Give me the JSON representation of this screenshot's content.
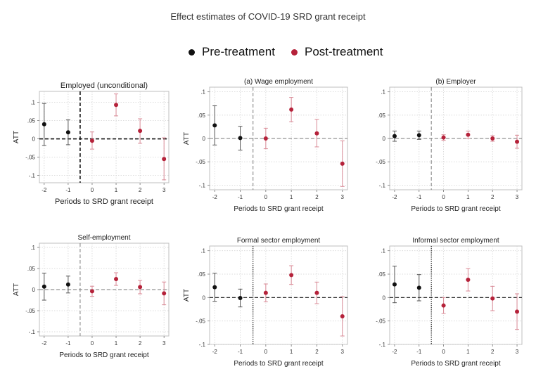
{
  "page": {
    "title": "Effect estimates of COVID-19 SRD grant receipt"
  },
  "legend": {
    "items": [
      {
        "label": "Pre-treatment",
        "color": "#000000"
      },
      {
        "label": "Post-treatment",
        "color": "#b5223a"
      }
    ]
  },
  "colors": {
    "pre": "#111111",
    "post": "#b5223a",
    "pre_ci": "#555555",
    "post_ci": "#d98a96"
  },
  "chart_data": [
    {
      "type": "scatter",
      "title": "Employed (unconditional)",
      "ylabel": "ATT",
      "xlabel": "Periods to SRD grant receipt",
      "x": [
        -2,
        -1,
        0,
        1,
        2,
        3
      ],
      "y": [
        0.04,
        0.018,
        -0.005,
        0.093,
        0.022,
        -0.055
      ],
      "ci_low": [
        -0.018,
        -0.016,
        -0.028,
        0.063,
        -0.012,
        -0.112
      ],
      "ci_high": [
        0.097,
        0.052,
        0.019,
        0.123,
        0.055,
        0.003
      ],
      "phase": [
        "pre",
        "pre",
        "post",
        "post",
        "post",
        "post"
      ],
      "xlim": [
        -2.2,
        3.2
      ],
      "ylim": [
        -0.12,
        0.13
      ],
      "yticks": [
        0.1,
        0.05,
        0,
        -0.05,
        -0.1
      ],
      "ytick_labels": [
        ".1",
        ".05",
        "0",
        "-.05",
        "-.1"
      ],
      "xticks": [
        -2,
        -1,
        0,
        1,
        2,
        3
      ],
      "xtick_labels": [
        "-2",
        "-1",
        "0",
        "1",
        "2",
        "3"
      ],
      "grid": true
    },
    {
      "type": "scatter",
      "title": "(a) Wage employment",
      "ylabel": "ATT",
      "xlabel": "Periods to SRD grant receipt",
      "x": [
        -2,
        -1,
        0,
        1,
        2,
        3
      ],
      "y": [
        0.028,
        0.001,
        0.0,
        0.062,
        0.011,
        -0.054
      ],
      "ci_low": [
        -0.014,
        -0.025,
        -0.022,
        0.036,
        -0.018,
        -0.103
      ],
      "ci_high": [
        0.07,
        0.026,
        0.022,
        0.088,
        0.041,
        -0.005
      ],
      "phase": [
        "pre",
        "pre",
        "post",
        "post",
        "post",
        "post"
      ],
      "xlim": [
        -2.2,
        3.2
      ],
      "ylim": [
        -0.11,
        0.11
      ],
      "yticks": [
        0.1,
        0.05,
        0,
        -0.05,
        -0.1
      ],
      "ytick_labels": [
        ".1",
        ".05",
        "0",
        "-.05",
        "-.1"
      ],
      "xticks": [
        -2,
        -1,
        0,
        1,
        2,
        3
      ],
      "xtick_labels": [
        "-2",
        "-1",
        "0",
        "1",
        "2",
        "3"
      ],
      "grid": true
    },
    {
      "type": "scatter",
      "title": "(b) Employer",
      "ylabel": "",
      "xlabel": "Periods to SRD grant receipt",
      "x": [
        -2,
        -1,
        0,
        1,
        2,
        3
      ],
      "y": [
        0.005,
        0.007,
        0.002,
        0.008,
        0.0,
        -0.007
      ],
      "ci_low": [
        -0.006,
        -0.002,
        -0.004,
        0.0,
        -0.006,
        -0.021
      ],
      "ci_high": [
        0.016,
        0.016,
        0.008,
        0.016,
        0.006,
        0.007
      ],
      "phase": [
        "pre",
        "pre",
        "post",
        "post",
        "post",
        "post"
      ],
      "xlim": [
        -2.2,
        3.2
      ],
      "ylim": [
        -0.11,
        0.11
      ],
      "yticks": [
        0.1,
        0.05,
        0,
        -0.05,
        -0.1
      ],
      "ytick_labels": [
        ".1",
        ".05",
        "0",
        "-.05",
        "-.1"
      ],
      "xticks": [
        -2,
        -1,
        0,
        1,
        2,
        3
      ],
      "xtick_labels": [
        "-2",
        "-1",
        "0",
        "1",
        "2",
        "3"
      ],
      "grid": true
    },
    {
      "type": "scatter",
      "title": "Self-employment",
      "ylabel": "ATT",
      "xlabel": "Periods to SRD grant receipt",
      "x": [
        -2,
        -1,
        0,
        1,
        2,
        3
      ],
      "y": [
        0.007,
        0.012,
        -0.004,
        0.025,
        0.006,
        -0.009
      ],
      "ci_low": [
        -0.025,
        -0.008,
        -0.016,
        0.01,
        -0.01,
        -0.036
      ],
      "ci_high": [
        0.039,
        0.032,
        0.008,
        0.04,
        0.022,
        0.018
      ],
      "phase": [
        "pre",
        "pre",
        "post",
        "post",
        "post",
        "post"
      ],
      "xlim": [
        -2.2,
        3.2
      ],
      "ylim": [
        -0.11,
        0.11
      ],
      "yticks": [
        0.1,
        0.05,
        0,
        -0.05,
        -0.1
      ],
      "ytick_labels": [
        ".1",
        ".05",
        "0",
        "-.05",
        "-.1"
      ],
      "xticks": [
        -2,
        -1,
        0,
        1,
        2,
        3
      ],
      "xtick_labels": [
        "-2",
        "-1",
        "0",
        "1",
        "2",
        "3"
      ],
      "grid": true
    },
    {
      "type": "scatter",
      "title": "Formal sector employment",
      "ylabel": "ATT",
      "xlabel": "Periods to SRD grant receipt",
      "x": [
        -2,
        -1,
        0,
        1,
        2,
        3
      ],
      "y": [
        0.022,
        -0.001,
        0.01,
        0.048,
        0.01,
        -0.04
      ],
      "ci_low": [
        -0.008,
        -0.02,
        -0.009,
        0.028,
        -0.013,
        -0.082
      ],
      "ci_high": [
        0.052,
        0.018,
        0.029,
        0.068,
        0.033,
        0.002
      ],
      "phase": [
        "pre",
        "pre",
        "post",
        "post",
        "post",
        "post"
      ],
      "xlim": [
        -2.2,
        3.2
      ],
      "ylim": [
        -0.1,
        0.11
      ],
      "yticks": [
        0.1,
        0.05,
        0,
        -0.05,
        -0.1
      ],
      "ytick_labels": [
        ".1",
        ".05",
        "0",
        "-.05",
        "-.1"
      ],
      "xticks": [
        -2,
        -1,
        0,
        1,
        2,
        3
      ],
      "xtick_labels": [
        "-2",
        "-1",
        "0",
        "1",
        "2",
        "3"
      ],
      "grid": true
    },
    {
      "type": "scatter",
      "title": "Informal sector employment",
      "ylabel": "",
      "xlabel": "Periods to SRD grant receipt",
      "x": [
        -2,
        -1,
        0,
        1,
        2,
        3
      ],
      "y": [
        0.028,
        0.021,
        -0.017,
        0.038,
        -0.002,
        -0.03
      ],
      "ci_low": [
        -0.011,
        -0.007,
        -0.034,
        0.014,
        -0.028,
        -0.068
      ],
      "ci_high": [
        0.067,
        0.049,
        0.0,
        0.062,
        0.024,
        0.008
      ],
      "phase": [
        "pre",
        "pre",
        "post",
        "post",
        "post",
        "post"
      ],
      "xlim": [
        -2.2,
        3.2
      ],
      "ylim": [
        -0.1,
        0.11
      ],
      "yticks": [
        0.1,
        0.05,
        0,
        -0.05,
        -0.1
      ],
      "ytick_labels": [
        ".1",
        ".05",
        "0",
        "-.05",
        "-.1"
      ],
      "xticks": [
        -2,
        -1,
        0,
        1,
        2,
        3
      ],
      "xtick_labels": [
        "-2",
        "-1",
        "0",
        "1",
        "2",
        "3"
      ],
      "grid": true
    }
  ]
}
